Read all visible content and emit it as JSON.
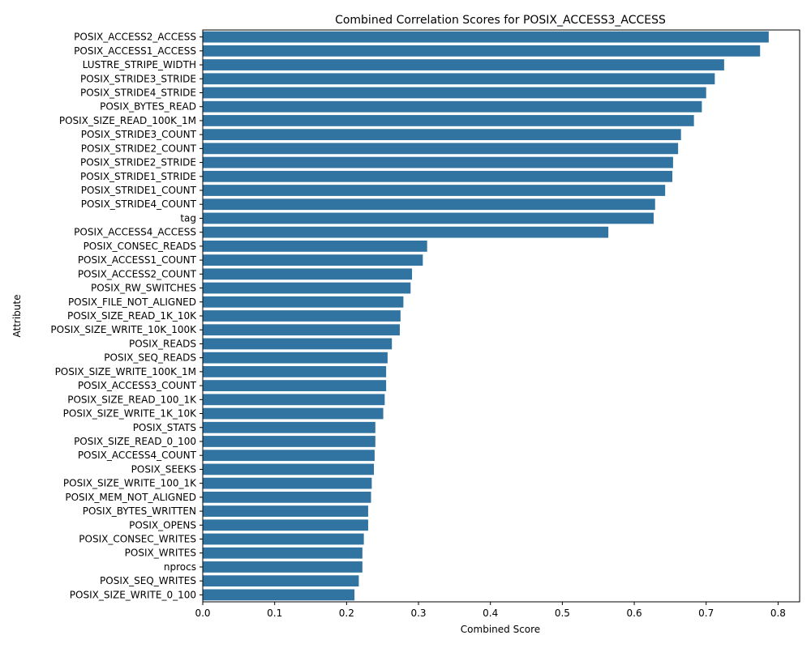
{
  "chart_data": {
    "type": "bar",
    "orientation": "horizontal",
    "title": "Combined Correlation Scores for POSIX_ACCESS3_ACCESS",
    "xlabel": "Combined Score",
    "ylabel": "Attribute",
    "xlim": [
      0,
      0.83
    ],
    "xticks": [
      "0.0",
      "0.1",
      "0.2",
      "0.3",
      "0.4",
      "0.5",
      "0.6",
      "0.7",
      "0.8"
    ],
    "bar_color": "#3274a1",
    "grid": false,
    "categories": [
      "POSIX_ACCESS2_ACCESS",
      "POSIX_ACCESS1_ACCESS",
      "LUSTRE_STRIPE_WIDTH",
      "POSIX_STRIDE3_STRIDE",
      "POSIX_STRIDE4_STRIDE",
      "POSIX_BYTES_READ",
      "POSIX_SIZE_READ_100K_1M",
      "POSIX_STRIDE3_COUNT",
      "POSIX_STRIDE2_COUNT",
      "POSIX_STRIDE2_STRIDE",
      "POSIX_STRIDE1_STRIDE",
      "POSIX_STRIDE1_COUNT",
      "POSIX_STRIDE4_COUNT",
      "tag",
      "POSIX_ACCESS4_ACCESS",
      "POSIX_CONSEC_READS",
      "POSIX_ACCESS1_COUNT",
      "POSIX_ACCESS2_COUNT",
      "POSIX_RW_SWITCHES",
      "POSIX_FILE_NOT_ALIGNED",
      "POSIX_SIZE_READ_1K_10K",
      "POSIX_SIZE_WRITE_10K_100K",
      "POSIX_READS",
      "POSIX_SEQ_READS",
      "POSIX_SIZE_WRITE_100K_1M",
      "POSIX_ACCESS3_COUNT",
      "POSIX_SIZE_READ_100_1K",
      "POSIX_SIZE_WRITE_1K_10K",
      "POSIX_STATS",
      "POSIX_SIZE_READ_0_100",
      "POSIX_ACCESS4_COUNT",
      "POSIX_SEEKS",
      "POSIX_SIZE_WRITE_100_1K",
      "POSIX_MEM_NOT_ALIGNED",
      "POSIX_BYTES_WRITTEN",
      "POSIX_OPENS",
      "POSIX_CONSEC_WRITES",
      "POSIX_WRITES",
      "nprocs",
      "POSIX_SEQ_WRITES",
      "POSIX_SIZE_WRITE_0_100"
    ],
    "values": [
      0.787,
      0.775,
      0.725,
      0.712,
      0.7,
      0.694,
      0.683,
      0.665,
      0.661,
      0.654,
      0.653,
      0.643,
      0.629,
      0.627,
      0.564,
      0.312,
      0.306,
      0.291,
      0.289,
      0.279,
      0.275,
      0.274,
      0.263,
      0.257,
      0.255,
      0.255,
      0.253,
      0.251,
      0.24,
      0.24,
      0.239,
      0.238,
      0.235,
      0.234,
      0.23,
      0.23,
      0.224,
      0.222,
      0.222,
      0.217,
      0.211
    ]
  }
}
